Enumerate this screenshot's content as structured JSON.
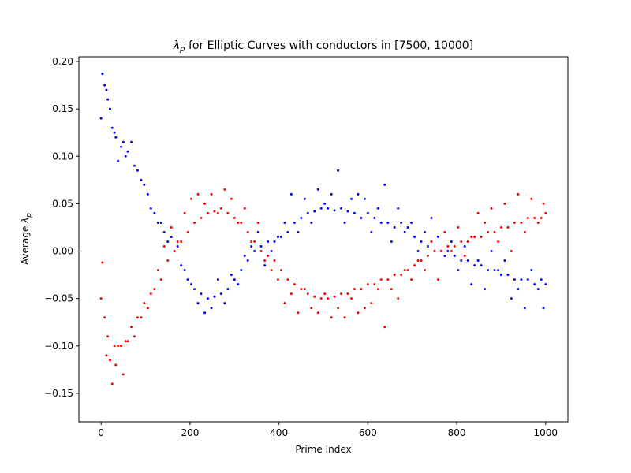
{
  "chart_data": {
    "type": "scatter",
    "title": "$\\lambda_p$ for Elliptic Curves with conductors in $[7500, 10000]$",
    "title_parts": {
      "lambda": "λ",
      "sub": "p",
      "text": " for Elliptic Curves with conductors in ",
      "range": "[7500, 10000]"
    },
    "xlabel": "Prime Index",
    "ylabel": "Average $\\lambda_p$",
    "ylabel_parts": {
      "text": "Average ",
      "lambda": "λ",
      "sub": "p"
    },
    "xlim": [
      -50,
      1050
    ],
    "ylim": [
      -0.18,
      0.205
    ],
    "xticks": [
      0,
      200,
      400,
      600,
      800,
      1000
    ],
    "xtick_labels": [
      "0",
      "200",
      "400",
      "600",
      "800",
      "1000"
    ],
    "yticks": [
      -0.15,
      -0.1,
      -0.05,
      0.0,
      0.05,
      0.1,
      0.15,
      0.2
    ],
    "ytick_labels": [
      "−0.15",
      "−0.10",
      "−0.05",
      "0.00",
      "0.05",
      "0.10",
      "0.15",
      "0.20"
    ],
    "grid": false,
    "legend": "none",
    "series": [
      {
        "color": "#0000ff",
        "marker_size": 1.5,
        "x": [
          0,
          15,
          30,
          45,
          60,
          75,
          90,
          105,
          120,
          135,
          150,
          165,
          180,
          195,
          210,
          225,
          240,
          255,
          270,
          285,
          300,
          315,
          330,
          345,
          360,
          375,
          390,
          405,
          420,
          435,
          450,
          465,
          480,
          495,
          510,
          525,
          540,
          555,
          570,
          585,
          600,
          615,
          630,
          645,
          660,
          675,
          690,
          705,
          720,
          735,
          750,
          765,
          780,
          795,
          810,
          825,
          840,
          855,
          870,
          885,
          900,
          915,
          930,
          945,
          960,
          975,
          990,
          1000,
          3,
          8,
          12,
          20,
          25,
          33,
          38,
          50,
          55,
          68,
          82,
          97,
          112,
          128,
          142,
          158,
          172,
          188,
          203,
          218,
          233,
          248,
          263,
          278,
          293,
          308,
          323,
          338,
          353,
          368,
          383,
          398,
          413,
          428,
          443,
          458,
          473,
          488,
          503,
          518,
          533,
          548,
          563,
          578,
          593,
          608,
          623,
          638,
          653,
          668,
          683,
          698,
          713,
          728,
          743,
          758,
          773,
          788,
          803,
          818,
          833,
          848,
          863,
          878,
          893,
          908,
          923,
          938,
          953,
          968,
          983,
          995
        ],
        "y": [
          0.14,
          0.16,
          0.125,
          0.11,
          0.105,
          0.09,
          0.075,
          0.06,
          0.04,
          0.03,
          0.01,
          0.0,
          -0.015,
          -0.03,
          -0.04,
          -0.045,
          -0.05,
          -0.048,
          -0.045,
          -0.04,
          -0.03,
          -0.02,
          -0.01,
          0.0,
          0.005,
          0.01,
          0.01,
          0.015,
          0.02,
          0.03,
          0.035,
          0.04,
          0.042,
          0.045,
          0.045,
          0.043,
          0.045,
          0.042,
          0.04,
          0.035,
          0.04,
          0.035,
          0.03,
          0.03,
          0.025,
          0.03,
          0.025,
          0.015,
          0.01,
          0.005,
          0.0,
          0.0,
          0.0,
          -0.005,
          -0.01,
          -0.01,
          -0.015,
          -0.015,
          -0.02,
          -0.02,
          -0.025,
          -0.025,
          -0.03,
          -0.03,
          -0.03,
          -0.035,
          -0.03,
          -0.035,
          0.187,
          0.175,
          0.17,
          0.15,
          0.13,
          0.12,
          0.095,
          0.115,
          0.1,
          0.115,
          0.085,
          0.07,
          0.045,
          0.03,
          0.02,
          0.015,
          0.005,
          -0.02,
          -0.035,
          -0.055,
          -0.065,
          -0.06,
          -0.03,
          -0.055,
          -0.025,
          -0.035,
          -0.005,
          0.005,
          0.02,
          -0.015,
          0.0,
          0.015,
          0.03,
          0.06,
          0.02,
          0.055,
          0.03,
          0.065,
          0.05,
          0.06,
          0.085,
          0.03,
          0.055,
          0.06,
          0.055,
          0.02,
          0.045,
          0.07,
          0.01,
          0.045,
          0.02,
          0.03,
          0.0,
          0.02,
          0.035,
          0.015,
          -0.005,
          0.01,
          -0.02,
          0.005,
          -0.035,
          -0.01,
          -0.04,
          0.0,
          -0.02,
          -0.01,
          -0.05,
          -0.04,
          -0.06,
          -0.02,
          -0.04,
          -0.06
        ]
      },
      {
        "color": "#ff0000",
        "marker_size": 1.5,
        "x": [
          0,
          15,
          30,
          45,
          60,
          75,
          90,
          105,
          120,
          135,
          150,
          165,
          180,
          195,
          210,
          225,
          240,
          255,
          270,
          285,
          300,
          315,
          330,
          345,
          360,
          375,
          390,
          405,
          420,
          435,
          450,
          465,
          480,
          495,
          510,
          525,
          540,
          555,
          570,
          585,
          600,
          615,
          630,
          645,
          660,
          675,
          690,
          705,
          720,
          735,
          750,
          765,
          780,
          795,
          810,
          825,
          840,
          855,
          870,
          885,
          900,
          915,
          930,
          945,
          960,
          975,
          990,
          1000,
          3,
          8,
          12,
          20,
          25,
          33,
          38,
          50,
          55,
          68,
          82,
          97,
          112,
          128,
          142,
          158,
          172,
          188,
          203,
          218,
          233,
          248,
          263,
          278,
          293,
          308,
          323,
          338,
          353,
          368,
          383,
          398,
          413,
          428,
          443,
          458,
          473,
          488,
          503,
          518,
          533,
          548,
          563,
          578,
          593,
          608,
          623,
          638,
          653,
          668,
          683,
          698,
          713,
          728,
          743,
          758,
          773,
          788,
          803,
          818,
          833,
          848,
          863,
          878,
          893,
          908,
          923,
          938,
          953,
          968,
          983,
          995
        ],
        "y": [
          -0.05,
          -0.09,
          -0.1,
          -0.1,
          -0.095,
          -0.09,
          -0.07,
          -0.06,
          -0.04,
          -0.03,
          -0.01,
          0.0,
          0.01,
          0.02,
          0.03,
          0.035,
          0.04,
          0.042,
          0.045,
          0.04,
          0.035,
          0.03,
          0.02,
          0.01,
          0.0,
          -0.005,
          -0.01,
          -0.02,
          -0.03,
          -0.035,
          -0.04,
          -0.045,
          -0.048,
          -0.05,
          -0.05,
          -0.048,
          -0.045,
          -0.045,
          -0.04,
          -0.04,
          -0.035,
          -0.035,
          -0.03,
          -0.03,
          -0.025,
          -0.025,
          -0.02,
          -0.015,
          -0.01,
          -0.005,
          0.0,
          0.0,
          0.005,
          0.005,
          0.01,
          0.01,
          0.015,
          0.015,
          0.02,
          0.02,
          0.025,
          0.025,
          0.03,
          0.03,
          0.035,
          0.035,
          0.035,
          0.04,
          -0.012,
          -0.07,
          -0.11,
          -0.115,
          -0.14,
          -0.12,
          -0.1,
          -0.13,
          -0.095,
          -0.08,
          -0.07,
          -0.055,
          -0.045,
          -0.02,
          0.005,
          0.025,
          0.01,
          0.04,
          0.055,
          0.06,
          0.05,
          0.06,
          0.04,
          0.065,
          0.055,
          0.03,
          0.045,
          0.01,
          0.03,
          -0.01,
          -0.02,
          -0.03,
          -0.055,
          -0.045,
          -0.065,
          -0.04,
          -0.06,
          -0.065,
          -0.045,
          -0.07,
          -0.06,
          -0.07,
          -0.05,
          -0.065,
          -0.06,
          -0.055,
          -0.04,
          -0.08,
          -0.04,
          -0.05,
          -0.02,
          -0.03,
          -0.01,
          -0.02,
          0.01,
          -0.03,
          0.02,
          0.0,
          0.025,
          -0.005,
          0.015,
          0.04,
          0.03,
          0.045,
          0.01,
          0.05,
          0.0,
          0.06,
          0.02,
          0.055,
          0.03,
          0.05
        ]
      }
    ]
  }
}
